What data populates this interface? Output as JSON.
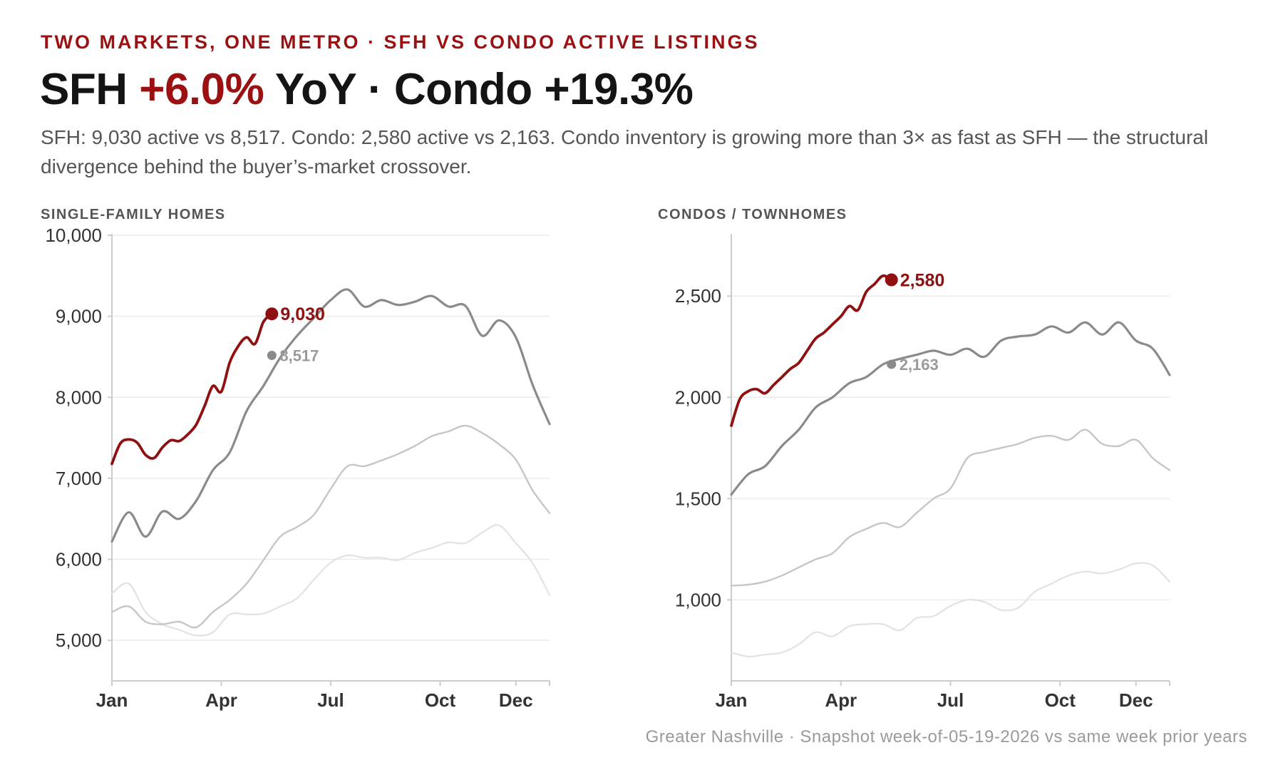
{
  "header": {
    "eyebrow": "TWO MARKETS, ONE METRO · SFH VS CONDO ACTIVE LISTINGS",
    "headline_part1": "SFH ",
    "headline_accent": "+6.0%",
    "headline_part2": " YoY · Condo +19.3%",
    "dek": "SFH: 9,030 active vs 8,517. Condo: 2,580 active vs 2,163. Condo inventory is growing more than 3× as fast as SFH — the structural divergence behind the buyer’s-market crossover."
  },
  "footer": "Greater Nashville · Snapshot week-of-05-19-2026 vs same week prior years",
  "colors": {
    "current_year": "#8f1010",
    "prior_year": "#8a8a8a",
    "two_years_ago": "#c6c6c6",
    "three_years_ago": "#e2e2e2",
    "grid": "#ebebeb",
    "axis": "#cccccc"
  },
  "chart_data": [
    {
      "type": "line",
      "panel_label": "SINGLE-FAMILY HOMES",
      "x_unit": "week of year",
      "xlim": [
        1,
        53
      ],
      "ylim": [
        4500,
        10000
      ],
      "y_ticks": [
        5000,
        6000,
        7000,
        8000,
        9000,
        10000
      ],
      "y_tick_labels": [
        "5,000",
        "6,000",
        "7,000",
        "8,000",
        "9,000",
        "10,000"
      ],
      "x_ticks": [
        1,
        14,
        27,
        40,
        49
      ],
      "x_tick_labels": [
        "Jan",
        "Apr",
        "Jul",
        "Oct",
        "Dec"
      ],
      "grid": true,
      "legend": "none",
      "series": [
        {
          "role": "three_years_ago",
          "x": [
            1,
            3,
            5,
            7,
            9,
            11,
            13,
            15,
            17,
            19,
            21,
            23,
            25,
            27,
            29,
            31,
            33,
            35,
            37,
            39,
            41,
            43,
            45,
            47,
            49,
            51,
            53
          ],
          "values": [
            5580,
            5700,
            5350,
            5200,
            5130,
            5060,
            5100,
            5320,
            5320,
            5330,
            5420,
            5520,
            5750,
            5960,
            6050,
            6020,
            6020,
            5990,
            6080,
            6140,
            6210,
            6200,
            6330,
            6420,
            6200,
            5950,
            5560
          ]
        },
        {
          "role": "two_years_ago",
          "x": [
            1,
            3,
            5,
            7,
            9,
            11,
            13,
            15,
            17,
            19,
            21,
            23,
            25,
            27,
            29,
            31,
            33,
            35,
            37,
            39,
            41,
            43,
            45,
            47,
            49,
            51,
            53
          ],
          "values": [
            5350,
            5420,
            5230,
            5200,
            5230,
            5160,
            5350,
            5500,
            5700,
            5990,
            6280,
            6400,
            6550,
            6870,
            7150,
            7150,
            7220,
            7300,
            7400,
            7520,
            7580,
            7650,
            7560,
            7420,
            7230,
            6850,
            6570
          ]
        },
        {
          "role": "prior_year",
          "x": [
            1,
            3,
            5,
            7,
            9,
            11,
            13,
            15,
            17,
            19,
            21,
            23,
            25,
            27,
            29,
            31,
            33,
            35,
            37,
            39,
            41,
            43,
            45,
            47,
            49,
            51,
            53
          ],
          "values": [
            6220,
            6580,
            6280,
            6590,
            6500,
            6720,
            7100,
            7320,
            7830,
            8140,
            8490,
            8760,
            8980,
            9200,
            9330,
            9120,
            9200,
            9140,
            9180,
            9250,
            9120,
            9130,
            8760,
            8950,
            8740,
            8150,
            7670
          ]
        },
        {
          "role": "current_year",
          "label": "9,030",
          "x": [
            1,
            2,
            3,
            4,
            5,
            6,
            7,
            8,
            9,
            10,
            11,
            12,
            13,
            14,
            15,
            16,
            17,
            18,
            19,
            20
          ],
          "values": [
            7180,
            7430,
            7480,
            7440,
            7290,
            7250,
            7380,
            7470,
            7460,
            7540,
            7660,
            7890,
            8140,
            8070,
            8430,
            8630,
            8740,
            8660,
            8930,
            9030
          ]
        }
      ],
      "callouts": [
        {
          "series": "current_year",
          "x": 20,
          "value": 9030,
          "text": "9,030"
        },
        {
          "series": "prior_year",
          "x": 20,
          "value": 8517,
          "text": "8,517"
        }
      ]
    },
    {
      "type": "line",
      "panel_label": "CONDOS / TOWNHOMES",
      "x_unit": "week of year",
      "xlim": [
        1,
        53
      ],
      "ylim": [
        600,
        2800
      ],
      "y_ticks": [
        1000,
        1500,
        2000,
        2500
      ],
      "y_tick_labels": [
        "1,000",
        "1,500",
        "2,000",
        "2,500"
      ],
      "x_ticks": [
        1,
        14,
        27,
        40,
        49
      ],
      "x_tick_labels": [
        "Jan",
        "Apr",
        "Jul",
        "Oct",
        "Dec"
      ],
      "grid": true,
      "legend": "none",
      "series": [
        {
          "role": "three_years_ago",
          "x": [
            1,
            3,
            5,
            7,
            9,
            11,
            13,
            15,
            17,
            19,
            21,
            23,
            25,
            27,
            29,
            31,
            33,
            35,
            37,
            39,
            41,
            43,
            45,
            47,
            49,
            51,
            53
          ],
          "values": [
            740,
            720,
            730,
            740,
            780,
            840,
            820,
            870,
            880,
            880,
            850,
            910,
            920,
            970,
            1000,
            990,
            950,
            960,
            1040,
            1080,
            1120,
            1140,
            1130,
            1150,
            1180,
            1170,
            1090
          ]
        },
        {
          "role": "two_years_ago",
          "x": [
            1,
            3,
            5,
            7,
            9,
            11,
            13,
            15,
            17,
            19,
            21,
            23,
            25,
            27,
            29,
            31,
            33,
            35,
            37,
            39,
            41,
            43,
            45,
            47,
            49,
            51,
            53
          ],
          "values": [
            1070,
            1075,
            1090,
            1120,
            1160,
            1200,
            1230,
            1310,
            1350,
            1380,
            1360,
            1430,
            1500,
            1550,
            1700,
            1730,
            1750,
            1770,
            1800,
            1810,
            1790,
            1840,
            1770,
            1760,
            1790,
            1700,
            1640
          ]
        },
        {
          "role": "prior_year",
          "x": [
            1,
            3,
            5,
            7,
            9,
            11,
            13,
            15,
            17,
            19,
            21,
            23,
            25,
            27,
            29,
            31,
            33,
            35,
            37,
            39,
            41,
            43,
            45,
            47,
            49,
            51,
            53
          ],
          "values": [
            1520,
            1620,
            1660,
            1760,
            1840,
            1950,
            2000,
            2070,
            2100,
            2163,
            2190,
            2210,
            2230,
            2210,
            2240,
            2200,
            2280,
            2300,
            2310,
            2350,
            2320,
            2370,
            2310,
            2370,
            2280,
            2240,
            2110
          ]
        },
        {
          "role": "current_year",
          "label": "2,580",
          "x": [
            1,
            2,
            3,
            4,
            5,
            6,
            7,
            8,
            9,
            10,
            11,
            12,
            13,
            14,
            15,
            16,
            17,
            18,
            19,
            20
          ],
          "values": [
            1860,
            1990,
            2030,
            2040,
            2020,
            2060,
            2100,
            2140,
            2170,
            2230,
            2290,
            2320,
            2360,
            2400,
            2450,
            2430,
            2520,
            2560,
            2600,
            2580
          ]
        }
      ],
      "callouts": [
        {
          "series": "current_year",
          "x": 20,
          "value": 2580,
          "text": "2,580"
        },
        {
          "series": "prior_year",
          "x": 20,
          "value": 2163,
          "text": "2,163"
        }
      ]
    }
  ]
}
